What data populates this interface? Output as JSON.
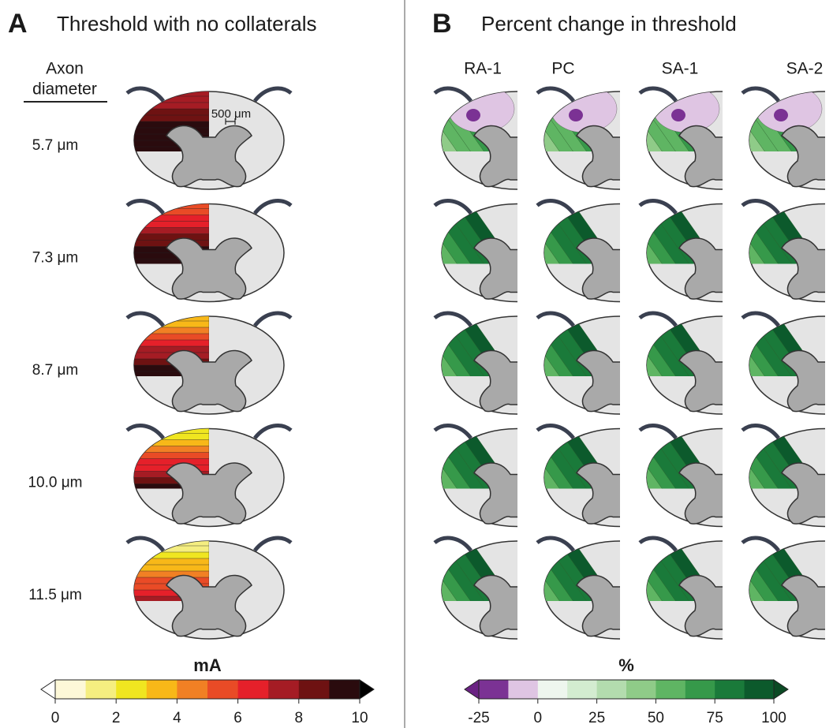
{
  "panel_a": {
    "label": "A",
    "title": "Threshold with no collaterals",
    "row_header": [
      "Axon",
      "diameter"
    ],
    "rows": [
      "5.7 μm",
      "7.3 μm",
      "8.7 μm",
      "10.0 μm",
      "11.5 μm"
    ],
    "scale_bar": "500 μm",
    "colorbar": {
      "title": "mA",
      "range": [
        0,
        10
      ],
      "ticks": [
        0,
        2,
        4,
        6,
        8,
        10
      ],
      "colors": [
        "#fdf8d8",
        "#f5ee80",
        "#f0e620",
        "#f8b818",
        "#f18024",
        "#e94b26",
        "#e5202a",
        "#a51c24",
        "#6e1212",
        "#2a0b0e"
      ],
      "under_color": "#ffffff",
      "over_color": "#000000"
    }
  },
  "panel_b": {
    "label": "B",
    "title": "Percent change in threshold",
    "columns": [
      "RA-1",
      "PC",
      "SA-1",
      "SA-2"
    ],
    "colorbar": {
      "title": "%",
      "range": [
        -25,
        100
      ],
      "ticks": [
        -25,
        0,
        25,
        50,
        75,
        100
      ],
      "colors": [
        "#7b3294",
        "#dfc5e3",
        "#eef6ee",
        "#d3ecd0",
        "#b3dcae",
        "#8fcb88",
        "#5fb563",
        "#36994a",
        "#1a7a3a",
        "#0c5a2c"
      ],
      "under_color": "#6a2283",
      "over_color": "#0b4a24"
    }
  }
}
